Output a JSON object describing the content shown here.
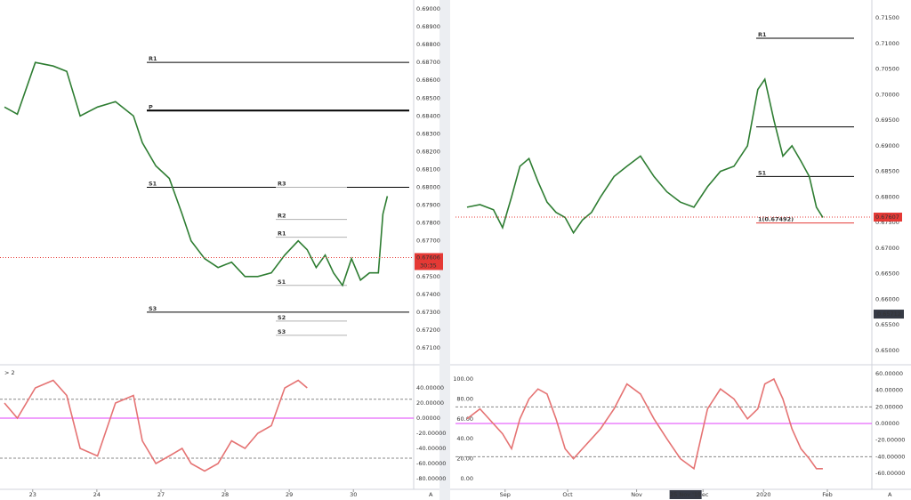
{
  "chart_data": [
    {
      "type": "line",
      "color": "#2e7d32",
      "x": [
        -0.44,
        -0.24,
        0.04,
        0.32,
        0.53,
        0.74,
        1.01,
        1.29,
        1.57,
        1.71,
        1.92,
        2.13,
        2.33,
        2.47,
        2.68,
        2.89,
        3.1,
        3.31,
        3.51,
        3.72,
        3.93,
        4.14,
        4.28,
        4.42,
        4.56,
        4.69,
        4.83,
        4.97,
        5.11,
        5.25,
        5.39,
        5.46,
        5.53
      ],
      "values": [
        0.6845,
        0.6841,
        0.687,
        0.6868,
        0.6865,
        0.684,
        0.6845,
        0.6848,
        0.684,
        0.6825,
        0.6812,
        0.6805,
        0.6785,
        0.677,
        0.676,
        0.6755,
        0.6758,
        0.675,
        0.675,
        0.6752,
        0.6762,
        0.677,
        0.6765,
        0.6755,
        0.6762,
        0.6752,
        0.6745,
        0.676,
        0.6748,
        0.6752,
        0.6752,
        0.6785,
        0.6795
      ],
      "xlim": [
        -0.51,
        5.94
      ],
      "ylim": [
        0.67005,
        0.6905
      ],
      "yticks": [
        {
          "value": 0.671,
          "label": "0.67100"
        },
        {
          "value": 0.672,
          "label": "0.67200"
        },
        {
          "value": 0.673,
          "label": "0.67300"
        },
        {
          "value": 0.674,
          "label": "0.67400"
        },
        {
          "value": 0.675,
          "label": "0.67500"
        },
        {
          "value": 0.676,
          "label": "0.67600"
        },
        {
          "value": 0.677,
          "label": "0.67700"
        },
        {
          "value": 0.678,
          "label": "0.67800"
        },
        {
          "value": 0.679,
          "label": "0.67900"
        },
        {
          "value": 0.68,
          "label": "0.68000"
        },
        {
          "value": 0.681,
          "label": "0.68100"
        },
        {
          "value": 0.682,
          "label": "0.68200"
        },
        {
          "value": 0.683,
          "label": "0.68300"
        },
        {
          "value": 0.684,
          "label": "0.68400"
        },
        {
          "value": 0.685,
          "label": "0.68500"
        },
        {
          "value": 0.686,
          "label": "0.68600"
        },
        {
          "value": 0.687,
          "label": "0.68700"
        },
        {
          "value": 0.688,
          "label": "0.68800"
        },
        {
          "value": 0.689,
          "label": "0.68900"
        },
        {
          "value": 0.69,
          "label": "0.69000"
        }
      ],
      "current_price": {
        "value": 0.67606,
        "label": "0.67606"
      },
      "countdown": "30:35",
      "levels": [
        {
          "label": "R1",
          "value": 0.687,
          "color": "#000000"
        },
        {
          "label": "P",
          "value": 0.6843,
          "color": "#000000"
        },
        {
          "label": "S1",
          "value": 0.68,
          "color": "#000000"
        },
        {
          "label": "S3",
          "value": 0.673,
          "color": "#000000"
        },
        {
          "label": "R3",
          "value": 0.68,
          "color": "#b0b0b0"
        },
        {
          "label": "R2",
          "value": 0.6782,
          "color": "#b0b0b0"
        },
        {
          "label": "R1",
          "value": 0.6772,
          "color": "#b0b0b0"
        },
        {
          "label": "S1",
          "value": 0.6745,
          "color": "#b0b0b0"
        },
        {
          "label": "S2",
          "value": 0.6725,
          "color": "#b0b0b0"
        },
        {
          "label": "S3",
          "value": 0.6717,
          "color": "#b0b0b0"
        }
      ]
    },
    {
      "type": "line",
      "color": "#e57373",
      "panel_label": "> 2",
      "x": [
        -0.44,
        -0.24,
        0.04,
        0.32,
        0.53,
        0.74,
        1.01,
        1.29,
        1.57,
        1.71,
        1.92,
        2.13,
        2.33,
        2.47,
        2.68,
        2.89,
        3.1,
        3.31,
        3.51,
        3.72,
        3.93,
        4.14,
        4.28,
        4.42,
        4.56,
        4.69,
        4.83,
        4.97,
        5.11,
        5.25,
        5.39,
        5.46,
        5.53
      ],
      "values": [
        20,
        0,
        40,
        50,
        30,
        -40,
        -50,
        20,
        30,
        -30,
        -60,
        -50,
        -40,
        -60,
        -70,
        -60,
        -30,
        -40,
        -20,
        -10,
        40,
        50,
        40,
        null,
        null,
        null,
        null,
        null,
        null,
        null,
        null,
        null,
        null
      ],
      "xlim": [
        -0.51,
        5.94
      ],
      "ylim": [
        -91.8,
        68.2
      ],
      "yticks": [
        {
          "value": 40,
          "label": "40.00000"
        },
        {
          "value": 20,
          "label": "20.00000"
        },
        {
          "value": 0,
          "label": "0.00000"
        },
        {
          "value": -20,
          "label": "-20.00000"
        },
        {
          "value": -40,
          "label": "-40.00000"
        },
        {
          "value": -60,
          "label": "-60.00000"
        },
        {
          "value": -80,
          "label": "-80.00000"
        }
      ],
      "xticks": [
        {
          "value": 0,
          "label": "23"
        },
        {
          "value": 1,
          "label": "24"
        },
        {
          "value": 2,
          "label": "27"
        },
        {
          "value": 3,
          "label": "28"
        },
        {
          "value": 4,
          "label": "29"
        },
        {
          "value": 5,
          "label": "30"
        }
      ],
      "levels": [
        {
          "value": 25,
          "color": "#888888"
        },
        {
          "value": 0,
          "color": "#e040fb"
        },
        {
          "value": -53,
          "color": "#888888"
        }
      ],
      "axis_button": "A"
    },
    {
      "type": "line",
      "color": "#2e7d32",
      "x": [
        -0.59,
        -0.39,
        -0.18,
        -0.04,
        0.1,
        0.23,
        0.37,
        0.51,
        0.65,
        0.79,
        0.93,
        1.06,
        1.2,
        1.34,
        1.48,
        1.69,
        1.89,
        2.1,
        2.31,
        2.51,
        2.72,
        2.93,
        3.14,
        3.34,
        3.55,
        3.76,
        3.92,
        4.03,
        4.17,
        4.31,
        4.45,
        4.59,
        4.72,
        4.83,
        4.93
      ],
      "values": [
        0.678,
        0.6785,
        0.6775,
        0.674,
        0.68,
        0.686,
        0.6875,
        0.683,
        0.679,
        0.677,
        0.676,
        0.673,
        0.6755,
        0.677,
        0.68,
        0.684,
        0.686,
        0.688,
        0.684,
        0.681,
        0.679,
        0.678,
        0.682,
        0.685,
        0.686,
        0.69,
        0.701,
        0.703,
        0.695,
        0.688,
        0.69,
        0.687,
        0.684,
        0.678,
        0.676
      ],
      "xlim": [
        -0.77,
        5.69
      ],
      "ylim": [
        0.64809,
        0.71848
      ],
      "yticks": [
        {
          "value": 0.65,
          "label": "0.65000"
        },
        {
          "value": 0.655,
          "label": "0.65500"
        },
        {
          "value": 0.66,
          "label": "0.66000"
        },
        {
          "value": 0.665,
          "label": "0.66500"
        },
        {
          "value": 0.67,
          "label": "0.67000"
        },
        {
          "value": 0.675,
          "label": "0.67500"
        },
        {
          "value": 0.68,
          "label": "0.68000"
        },
        {
          "value": 0.685,
          "label": "0.68500"
        },
        {
          "value": 0.69,
          "label": "0.69000"
        },
        {
          "value": 0.695,
          "label": "0.69500"
        },
        {
          "value": 0.7,
          "label": "0.70000"
        },
        {
          "value": 0.705,
          "label": "0.70500"
        },
        {
          "value": 0.71,
          "label": "0.71000"
        },
        {
          "value": 0.715,
          "label": "0.71500"
        }
      ],
      "current_price": {
        "value": 0.67607,
        "label": "0.67607"
      },
      "marker_price": {
        "value": 0.65712,
        "label": "0.65712"
      },
      "levels": [
        {
          "label": "R1",
          "value": 0.711,
          "color": "#000000"
        },
        {
          "value": 0.6937,
          "color": "#000000"
        },
        {
          "label": "S1",
          "value": 0.684,
          "color": "#000000"
        },
        {
          "label": "1(0.67492)",
          "value": 0.67492,
          "color": "#e53935"
        }
      ]
    },
    {
      "type": "line",
      "color": "#e57373",
      "x": [
        -0.59,
        -0.39,
        -0.18,
        -0.04,
        0.1,
        0.23,
        0.37,
        0.51,
        0.65,
        0.79,
        0.93,
        1.06,
        1.2,
        1.34,
        1.48,
        1.69,
        1.89,
        2.1,
        2.31,
        2.51,
        2.72,
        2.93,
        3.14,
        3.34,
        3.55,
        3.76,
        3.92,
        4.03,
        4.17,
        4.31,
        4.45,
        4.59,
        4.72,
        4.83,
        4.93
      ],
      "values": [
        60,
        70,
        55,
        45,
        30,
        60,
        80,
        90,
        85,
        60,
        30,
        20,
        30,
        40,
        50,
        70,
        95,
        85,
        60,
        40,
        20,
        10,
        70,
        90,
        80,
        60,
        70,
        95,
        100,
        80,
        50,
        30,
        20,
        10,
        10
      ],
      "xlim": [
        -0.77,
        5.69
      ],
      "ylim": [
        -8.9,
        112.5
      ],
      "y2lim": [
        -77.1,
        68.6
      ],
      "yticks": [
        {
          "value": 100,
          "label": "100.00"
        },
        {
          "value": 80,
          "label": "80.00"
        },
        {
          "value": 60,
          "label": "60.00"
        },
        {
          "value": 40,
          "label": "40.00"
        },
        {
          "value": 20,
          "label": "20.00"
        },
        {
          "value": 0,
          "label": "0.00"
        }
      ],
      "y2ticks": [
        {
          "value": 60,
          "label": "60.00000"
        },
        {
          "value": 40,
          "label": "40.00000"
        },
        {
          "value": 20,
          "label": "20.00000"
        },
        {
          "value": 0,
          "label": "0.00000"
        },
        {
          "value": -20,
          "label": "-20.00000"
        },
        {
          "value": -40,
          "label": "-40.00000"
        },
        {
          "value": -60,
          "label": "-60.00000"
        }
      ],
      "xticks": [
        {
          "value": 0,
          "label": "Sep"
        },
        {
          "value": 0.97,
          "label": "Oct"
        },
        {
          "value": 2.04,
          "label": "Nov"
        },
        {
          "value": 3.07,
          "label": "Dec"
        },
        {
          "value": 4.01,
          "label": "2020"
        },
        {
          "value": 5.0,
          "label": "Feb"
        }
      ],
      "crosshair": {
        "value": 2.8,
        "label": "25 Nov '19"
      },
      "levels": [
        {
          "value": 20,
          "color": "#888888",
          "axis": "y2"
        },
        {
          "value": 0,
          "color": "#e040fb",
          "axis": "y2"
        },
        {
          "value": -40,
          "color": "#888888",
          "axis": "y2"
        }
      ],
      "axis_button": "A"
    }
  ]
}
